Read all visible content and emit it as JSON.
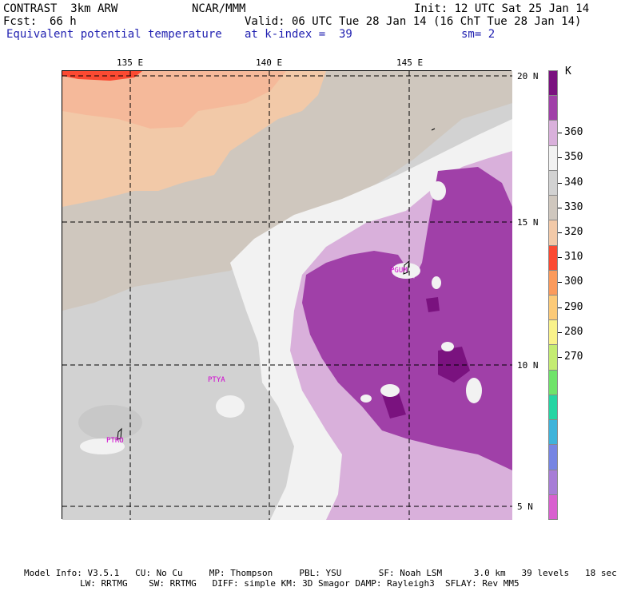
{
  "header": {
    "model": "CONTRAST  3km ARW",
    "institution": "NCAR/MMM",
    "init": "Init: 12 UTC Sat 25 Jan 14",
    "fcst_label": "Fcst:",
    "fcst_value": "66 h",
    "valid": "Valid: 06 UTC Tue 28 Jan 14 (16 ChT Tue 28 Jan 14)",
    "field": "Equivalent potential temperature",
    "level": "at k-index =  39",
    "smoothing": "sm= 2"
  },
  "map": {
    "lon_labels": [
      "135 E",
      "140 E",
      "145 E"
    ],
    "lat_labels": [
      "20 N",
      "15 N",
      "10 N",
      "5 N"
    ],
    "stations": [
      "PGUM",
      "PTYA",
      "PTRO"
    ]
  },
  "legend": {
    "unit": "K",
    "labels": [
      "360",
      "350",
      "340",
      "330",
      "320",
      "310",
      "300",
      "290",
      "280",
      "270"
    ],
    "colors": [
      "#7a127f",
      "#a040a8",
      "#d9b0db",
      "#f2f2f2",
      "#d2d2d2",
      "#cfc7be",
      "#f2c9a8",
      "#fb4a32",
      "#fb9a5c",
      "#fcca78",
      "#f9f28a",
      "#c4ec72",
      "#6fe36a",
      "#25d5a3",
      "#3fb3da",
      "#7685e3",
      "#a77dd6",
      "#d860cf"
    ]
  },
  "footer": {
    "line1": "Model Info: V3.5.1   CU: No Cu     MP: Thompson     PBL: YSU       SF: Noah LSM      3.0 km   39 levels   18 sec",
    "line2": "LW: RRTMG    SW: RRTMG   DIFF: simple KM: 3D Smagor DAMP: Rayleigh3  SFLAY: Rev MM5"
  }
}
